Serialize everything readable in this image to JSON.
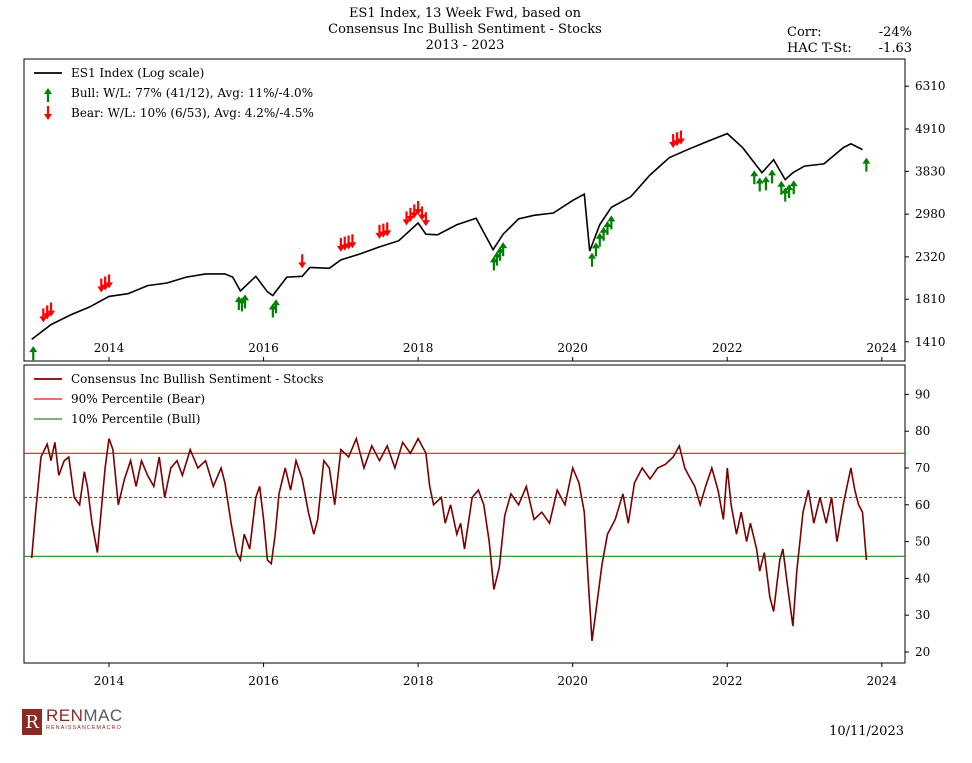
{
  "header": {
    "title_lines": [
      "ES1 Index, 13 Week Fwd, based on",
      "Consensus Inc Bullish Sentiment - Stocks",
      "2013 - 2023"
    ],
    "corr_label": "Corr:",
    "corr_value": "-24%",
    "tstat_label": "HAC T-St:",
    "tstat_value": "-1.63"
  },
  "footer": {
    "date": "10/11/2023",
    "logo_mark": "R",
    "logo_name_a": "REN",
    "logo_name_b": "MAC",
    "logo_sub": "RENAISSANCEMACRO"
  },
  "colors": {
    "price": "#000000",
    "sentiment": "#7b0000",
    "bear_line": "#e41a1c",
    "bull_line": "#1f8a1f",
    "median_line": "#8b1a1a",
    "bull_arrow": "#008000",
    "bear_arrow": "#ff0000"
  },
  "chart_data": [
    {
      "type": "line",
      "title": "ES1 Index (Log scale)",
      "scale": "log",
      "ylim": [
        1260,
        7400
      ],
      "xlim": [
        2012.9,
        2024.3
      ],
      "yticks": [
        1410,
        1810,
        2320,
        2980,
        3830,
        4910,
        6310
      ],
      "xticks": [
        "2014",
        "2016",
        "2018",
        "2020",
        "2022",
        "2024"
      ],
      "x": [
        2013.0,
        2013.25,
        2013.5,
        2013.75,
        2014.0,
        2014.25,
        2014.5,
        2014.75,
        2015.0,
        2015.25,
        2015.5,
        2015.6,
        2015.7,
        2015.9,
        2016.05,
        2016.12,
        2016.3,
        2016.5,
        2016.6,
        2016.85,
        2017.0,
        2017.25,
        2017.5,
        2017.75,
        2018.0,
        2018.1,
        2018.25,
        2018.5,
        2018.75,
        2018.97,
        2019.1,
        2019.3,
        2019.5,
        2019.75,
        2020.0,
        2020.15,
        2020.22,
        2020.35,
        2020.5,
        2020.75,
        2021.0,
        2021.25,
        2021.5,
        2021.75,
        2022.0,
        2022.2,
        2022.45,
        2022.6,
        2022.75,
        2022.85,
        2023.0,
        2023.25,
        2023.5,
        2023.6,
        2023.75
      ],
      "values": [
        1430,
        1560,
        1650,
        1730,
        1840,
        1870,
        1960,
        1990,
        2060,
        2100,
        2100,
        2060,
        1900,
        2070,
        1890,
        1850,
        2060,
        2070,
        2180,
        2170,
        2280,
        2360,
        2460,
        2550,
        2830,
        2650,
        2640,
        2800,
        2910,
        2420,
        2650,
        2900,
        2960,
        3000,
        3230,
        3350,
        2400,
        2800,
        3100,
        3300,
        3750,
        4150,
        4360,
        4570,
        4780,
        4400,
        3800,
        4100,
        3650,
        3800,
        3950,
        4000,
        4400,
        4500,
        4350
      ],
      "legend": [
        {
          "label": "ES1 Index (Log scale)",
          "kind": "line"
        },
        {
          "label": "Bull:   W/L: 77% (41/12), Avg: 11%/-4.0%",
          "kind": "bull-arrow"
        },
        {
          "label": "Bear:   W/L: 10% (6/53), Avg: 4.2%/-4.5%",
          "kind": "bear-arrow"
        }
      ],
      "bull_signals": [
        2013.02,
        2015.68,
        2015.72,
        2015.76,
        2016.12,
        2016.16,
        2018.98,
        2019.02,
        2019.06,
        2019.1,
        2020.25,
        2020.3,
        2020.35,
        2020.4,
        2020.45,
        2020.5,
        2022.35,
        2022.42,
        2022.5,
        2022.58,
        2022.7,
        2022.75,
        2022.8,
        2022.86,
        2023.8
      ],
      "bear_signals": [
        2013.15,
        2013.2,
        2013.25,
        2013.9,
        2013.95,
        2014.0,
        2016.5,
        2017.0,
        2017.05,
        2017.1,
        2017.15,
        2017.5,
        2017.55,
        2017.6,
        2017.85,
        2017.9,
        2017.95,
        2018.0,
        2018.05,
        2018.1,
        2021.3,
        2021.35,
        2021.4
      ]
    },
    {
      "type": "line",
      "title": "Consensus Inc Bullish Sentiment - Stocks",
      "ylim": [
        17,
        98
      ],
      "xlim": [
        2012.9,
        2024.3
      ],
      "yticks": [
        20,
        30,
        40,
        50,
        60,
        70,
        80,
        90
      ],
      "xticks": [
        "2014",
        "2016",
        "2018",
        "2020",
        "2022",
        "2024"
      ],
      "bear_threshold": 74,
      "bull_threshold": 46,
      "median": 62,
      "legend": [
        {
          "label": "Consensus Inc Bullish Sentiment - Stocks",
          "kind": "series"
        },
        {
          "label": "90% Percentile (Bear)",
          "kind": "bear"
        },
        {
          "label": "10% Percentile (Bull)",
          "kind": "bull"
        }
      ],
      "x": [
        2013.0,
        2013.05,
        2013.12,
        2013.2,
        2013.25,
        2013.3,
        2013.35,
        2013.42,
        2013.48,
        2013.55,
        2013.62,
        2013.68,
        2013.72,
        2013.78,
        2013.85,
        2013.95,
        2014.0,
        2014.05,
        2014.12,
        2014.2,
        2014.28,
        2014.35,
        2014.42,
        2014.5,
        2014.58,
        2014.65,
        2014.72,
        2014.8,
        2014.88,
        2014.95,
        2015.05,
        2015.15,
        2015.25,
        2015.35,
        2015.45,
        2015.5,
        2015.58,
        2015.65,
        2015.7,
        2015.75,
        2015.82,
        2015.9,
        2015.95,
        2016.0,
        2016.05,
        2016.1,
        2016.15,
        2016.2,
        2016.28,
        2016.35,
        2016.42,
        2016.5,
        2016.58,
        2016.65,
        2016.7,
        2016.78,
        2016.85,
        2016.92,
        2017.0,
        2017.1,
        2017.2,
        2017.3,
        2017.4,
        2017.5,
        2017.6,
        2017.7,
        2017.8,
        2017.9,
        2018.0,
        2018.05,
        2018.1,
        2018.15,
        2018.2,
        2018.3,
        2018.35,
        2018.42,
        2018.5,
        2018.55,
        2018.6,
        2018.7,
        2018.78,
        2018.85,
        2018.92,
        2018.98,
        2019.05,
        2019.12,
        2019.2,
        2019.3,
        2019.4,
        2019.5,
        2019.6,
        2019.7,
        2019.8,
        2019.9,
        2020.0,
        2020.08,
        2020.15,
        2020.2,
        2020.25,
        2020.3,
        2020.38,
        2020.45,
        2020.55,
        2020.65,
        2020.72,
        2020.8,
        2020.9,
        2021.0,
        2021.1,
        2021.2,
        2021.3,
        2021.38,
        2021.45,
        2021.5,
        2021.58,
        2021.65,
        2021.72,
        2021.8,
        2021.88,
        2021.95,
        2022.0,
        2022.05,
        2022.12,
        2022.18,
        2022.25,
        2022.3,
        2022.38,
        2022.42,
        2022.48,
        2022.55,
        2022.6,
        2022.68,
        2022.72,
        2022.78,
        2022.85,
        2022.9,
        2022.98,
        2023.05,
        2023.12,
        2023.2,
        2023.28,
        2023.35,
        2023.42,
        2023.5,
        2023.55,
        2023.6,
        2023.65,
        2023.7,
        2023.75,
        2023.8
      ],
      "values": [
        45.5,
        58,
        73,
        76.5,
        72,
        77,
        68,
        72,
        73,
        62,
        60,
        69,
        65,
        55,
        47,
        70,
        78,
        75,
        60,
        67,
        72,
        65,
        72,
        68,
        65,
        73,
        62,
        70,
        72,
        68,
        75,
        70,
        72,
        65,
        70,
        66,
        55,
        47,
        45,
        52,
        48,
        62,
        65,
        56,
        45,
        44,
        52,
        63,
        70,
        64,
        72,
        67,
        58,
        52,
        56,
        72,
        70,
        60,
        75,
        73,
        78,
        70,
        76,
        72,
        76,
        70,
        77,
        74,
        78,
        76,
        74,
        65,
        60,
        62,
        55,
        60,
        52,
        55,
        48,
        62,
        64,
        60,
        50,
        37,
        43,
        57,
        63,
        60,
        65,
        56,
        58,
        55,
        64,
        60,
        70,
        66,
        58,
        40,
        23,
        31,
        44,
        52,
        56,
        63,
        55,
        66,
        70,
        67,
        70,
        71,
        73,
        76,
        70,
        68,
        65,
        60,
        65,
        70,
        64,
        56,
        70,
        60,
        52,
        58,
        50,
        55,
        48,
        42,
        47,
        35,
        31,
        45,
        48,
        38,
        27,
        42,
        58,
        64,
        55,
        62,
        55,
        62,
        50,
        60,
        65,
        70,
        64,
        60,
        58,
        45
      ]
    }
  ]
}
